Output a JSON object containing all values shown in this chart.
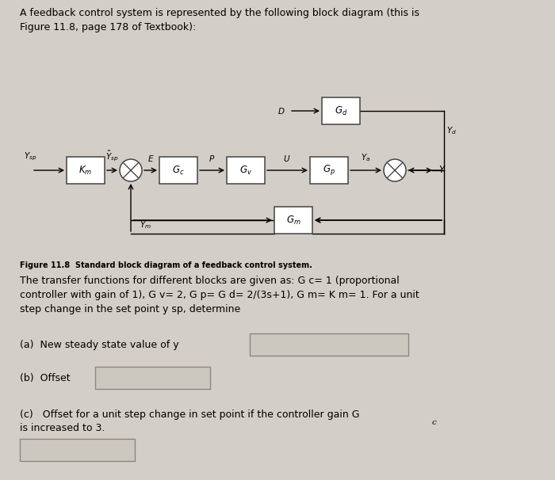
{
  "bg_color": "#d4cec8",
  "text_color": "#111111",
  "header_text": "A feedback control system is represented by the following block diagram (this is\nFigure 11.8, page 178 of Textbook):",
  "figure_caption": "Figure 11.8  Standard block diagram of a feedback control system.",
  "body_text1": "The transfer functions for different blocks are given as: G",
  "body_text2": "= 1 (proportional",
  "body_line2": "controller with gain of 1), G",
  "body_line3": "= 2, G",
  "body_line3b": "= G",
  "body_line3c": "= 2/(3s+1), G",
  "body_line3d": "= K",
  "body_line3e": "= 1. For a unit",
  "body_line4": "step change in the set point y",
  "body_line4b": "determine",
  "qa_a": "(a)  New steady state value of y",
  "qa_b": "(b)  Offset",
  "qa_c1": "(c)   Offset for a unit step change in set point if the controller gain G",
  "qa_c2": "is increased to 3.",
  "block_bg": "#e8e4de",
  "block_edge": "#444444",
  "answer_box_bg": "#ccc8c0",
  "answer_box_edge": "#888888"
}
